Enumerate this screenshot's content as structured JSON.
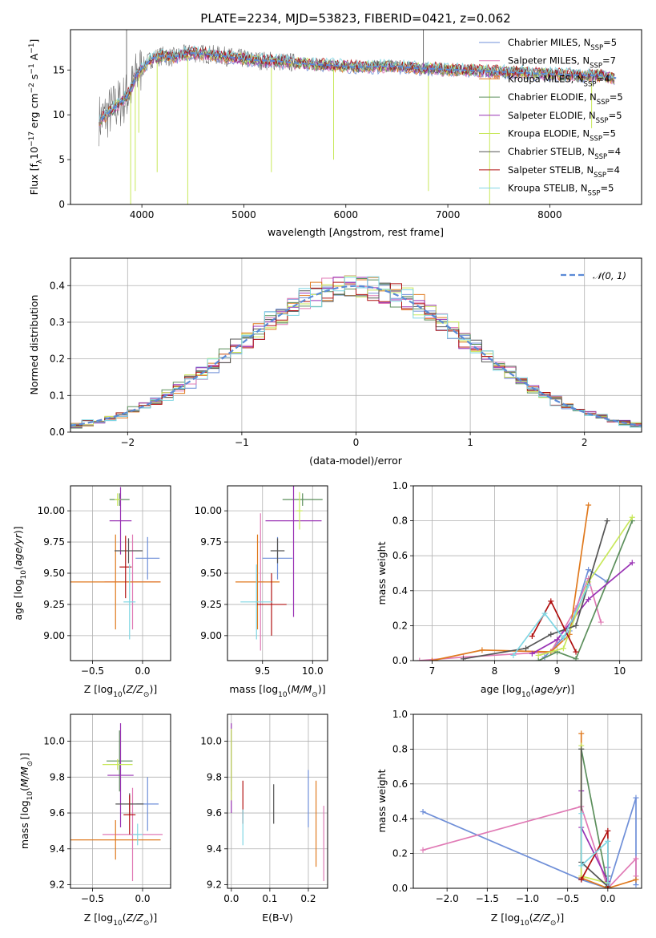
{
  "colors": {
    "Chabrier MILES": "#6f8fd8",
    "Salpeter MILES": "#e07ab5",
    "Kroupa MILES": "#e07a1f",
    "Chabrier ELODIE": "#5c8f5c",
    "Salpeter ELODIE": "#9932b4",
    "Kroupa ELODIE": "#c8e85a",
    "Chabrier STELIB": "#555555",
    "Salpeter STELIB": "#b01010",
    "Kroupa STELIB": "#7fd6e3",
    "data": "#6e6e6e",
    "normal": "#5b8ad6"
  },
  "chart_data": [
    {
      "id": "spectrum",
      "type": "line",
      "title": "PLATE=2234, MJD=53823, FIBERID=0421, z=0.062",
      "xlabel": "wavelength [Angstrom, rest frame]",
      "ylabel": "Flux [f_λ10^-17 erg cm^-2 s^-1 A^-1]",
      "xlim": [
        3300,
        8900
      ],
      "ylim": [
        0,
        19.5
      ],
      "xticks": [
        "4000",
        "5000",
        "6000",
        "7000",
        "8000"
      ],
      "yticks": [
        "0",
        "5",
        "10",
        "15"
      ],
      "grid": false,
      "legend_position": "top-right",
      "legend": [
        {
          "text": "Chabrier MILES, N",
          "sub": "SSP",
          "tail": "=5"
        },
        {
          "text": "Salpeter MILES, N",
          "sub": "SSP",
          "tail": "=7"
        },
        {
          "text": "Kroupa MILES, N",
          "sub": "SSP",
          "tail": "=4"
        },
        {
          "text": "Chabrier ELODIE, N",
          "sub": "SSP",
          "tail": "=5"
        },
        {
          "text": "Salpeter ELODIE, N",
          "sub": "SSP",
          "tail": "=5"
        },
        {
          "text": "Kroupa ELODIE, N",
          "sub": "SSP",
          "tail": "=5"
        },
        {
          "text": "Chabrier STELIB, N",
          "sub": "SSP",
          "tail": "=4"
        },
        {
          "text": "Salpeter STELIB, N",
          "sub": "SSP",
          "tail": "=4"
        },
        {
          "text": "Kroupa STELIB, N",
          "sub": "SSP",
          "tail": "=5"
        }
      ],
      "model_curve": {
        "x": [
          3600,
          3700,
          3800,
          3850,
          3900,
          3950,
          4000,
          4100,
          4200,
          4300,
          4400,
          4500,
          4700,
          4900,
          5100,
          5300,
          5500,
          5700,
          5900,
          6100,
          6300,
          6500,
          6700,
          6900,
          7100,
          7300,
          7500,
          7700,
          7900,
          8100,
          8300,
          8500,
          8650
        ],
        "y": [
          9.5,
          10.5,
          11.5,
          12,
          13,
          14.5,
          15.2,
          16.3,
          16.6,
          16.4,
          16.7,
          16.9,
          16.7,
          16.4,
          16.1,
          16.0,
          15.8,
          15.6,
          15.5,
          15.3,
          15.4,
          15.4,
          15.2,
          15.1,
          15.0,
          14.9,
          14.8,
          14.7,
          14.6,
          14.5,
          14.4,
          14.4,
          14.1
        ]
      },
      "data_spikes": [
        {
          "x": 3890,
          "y": 0
        },
        {
          "x": 3935,
          "y": 1.5
        },
        {
          "x": 3970,
          "y": 8
        },
        {
          "x": 4150,
          "y": 3.6
        },
        {
          "x": 4450,
          "y": 0
        },
        {
          "x": 5270,
          "y": 3.6
        },
        {
          "x": 5880,
          "y": 5
        },
        {
          "x": 6810,
          "y": 1.5
        },
        {
          "x": 7410,
          "y": 0
        },
        {
          "x": 8410,
          "y": 8.5
        },
        {
          "x": 3850,
          "y": 19.5
        },
        {
          "x": 6760,
          "y": 19.5
        }
      ]
    },
    {
      "id": "residual-histogram",
      "type": "line",
      "xlabel": "(data-model)/error",
      "ylabel": "Normed distribution",
      "xlim": [
        -2.5,
        2.5
      ],
      "ylim": [
        0,
        0.475
      ],
      "xticks": [
        "−2",
        "−1",
        "0",
        "1",
        "2"
      ],
      "yticks": [
        "0.0",
        "0.1",
        "0.2",
        "0.3",
        "0.4"
      ],
      "grid": true,
      "legend_position": "top-right",
      "legend": "𝒩(0, 1)"
    },
    {
      "id": "age-vs-Z",
      "type": "scatter",
      "xlabel": "Z [log10(Z/Z⊙)]",
      "ylabel": "age  [log10(age/yr)]",
      "xlim": [
        -0.72,
        0.28
      ],
      "ylim": [
        8.8,
        10.2
      ],
      "xticks": [
        "−0.5",
        "0.0"
      ],
      "yticks": [
        "9.00",
        "9.25",
        "9.50",
        "9.75",
        "10.00"
      ],
      "grid": true,
      "points": [
        {
          "series": "Chabrier MILES",
          "x": 0.05,
          "xerr": 0.12,
          "y": 9.62,
          "yerr": 0.17
        },
        {
          "series": "Salpeter MILES",
          "x": -0.1,
          "xerr": 0.28,
          "y": 9.43,
          "yerr": 0.38
        },
        {
          "series": "Kroupa MILES",
          "x": -0.27,
          "xerr": 0.45,
          "y": 9.43,
          "yerr": 0.38
        },
        {
          "series": "Chabrier ELODIE",
          "x": -0.23,
          "xerr": 0.1,
          "y": 10.09,
          "yerr": 0.05
        },
        {
          "series": "Salpeter ELODIE",
          "x": -0.22,
          "xerr": 0.11,
          "y": 9.92,
          "yerr": 0.27
        },
        {
          "series": "Kroupa ELODIE",
          "x": -0.25,
          "xerr": 0.03,
          "y": 10.09,
          "yerr": 0.05
        },
        {
          "series": "Chabrier STELIB",
          "x": -0.14,
          "xerr": 0.14,
          "y": 9.68,
          "yerr": 0.1
        },
        {
          "series": "Salpeter STELIB",
          "x": -0.17,
          "xerr": 0.06,
          "y": 9.55,
          "yerr": 0.25
        },
        {
          "series": "Kroupa STELIB",
          "x": -0.13,
          "xerr": 0.06,
          "y": 9.27,
          "yerr": 0.3
        }
      ]
    },
    {
      "id": "age-vs-mass",
      "type": "scatter",
      "xlabel": "mass [log10(M/M⊙)]",
      "ylabel": "",
      "xlim": [
        9.15,
        10.15
      ],
      "ylim": [
        8.8,
        10.2
      ],
      "xticks": [
        "9.5",
        "10.0"
      ],
      "yticks": [
        "9.00",
        "9.25",
        "9.50",
        "9.75",
        "10.00"
      ],
      "grid": true,
      "points": [
        {
          "series": "Chabrier MILES",
          "x": 9.65,
          "xerr": 0.15,
          "y": 9.62,
          "yerr": 0.17
        },
        {
          "series": "Salpeter MILES",
          "x": 9.48,
          "xerr": 0.04,
          "y": 9.43,
          "yerr": 0.55
        },
        {
          "series": "Kroupa MILES",
          "x": 9.45,
          "xerr": 0.22,
          "y": 9.43,
          "yerr": 0.38
        },
        {
          "series": "Chabrier ELODIE",
          "x": 9.9,
          "xerr": 0.2,
          "y": 10.09,
          "yerr": 0.05
        },
        {
          "series": "Salpeter ELODIE",
          "x": 9.81,
          "xerr": 0.28,
          "y": 9.92,
          "yerr": 0.77
        },
        {
          "series": "Kroupa ELODIE",
          "x": 9.87,
          "xerr": 0.03,
          "y": 10.0,
          "yerr": 0.15
        },
        {
          "series": "Chabrier STELIB",
          "x": 9.65,
          "xerr": 0.07,
          "y": 9.68,
          "yerr": 0.1
        },
        {
          "series": "Salpeter STELIB",
          "x": 9.59,
          "xerr": 0.15,
          "y": 9.25,
          "yerr": 0.25
        },
        {
          "series": "Kroupa STELIB",
          "x": 9.44,
          "xerr": 0.16,
          "y": 9.27,
          "yerr": 0.3
        }
      ]
    },
    {
      "id": "mass-weight-vs-age",
      "type": "line",
      "xlabel": "age  [log10(age/yr)]",
      "ylabel": "mass weight",
      "xlim": [
        6.7,
        10.35
      ],
      "ylim": [
        0,
        1.0
      ],
      "xticks": [
        "7",
        "8",
        "9",
        "10"
      ],
      "yticks": [
        "0.0",
        "0.2",
        "0.4",
        "0.6",
        "0.8",
        "1.0"
      ],
      "grid": true,
      "series": [
        {
          "name": "Chabrier MILES",
          "x": [
            8.8,
            9.2,
            9.5,
            9.8
          ],
          "y": [
            0.02,
            0.17,
            0.52,
            0.45
          ]
        },
        {
          "name": "Salpeter MILES",
          "x": [
            6.8,
            7.5,
            8.9,
            9.3,
            9.5,
            9.7
          ],
          "y": [
            0.0,
            0.02,
            0.05,
            0.3,
            0.47,
            0.22
          ]
        },
        {
          "name": "Kroupa MILES",
          "x": [
            7.0,
            7.8,
            8.9,
            9.2,
            9.5
          ],
          "y": [
            0.0,
            0.06,
            0.05,
            0.15,
            0.89
          ]
        },
        {
          "name": "Chabrier ELODIE",
          "x": [
            8.7,
            9.0,
            9.3,
            10.2
          ],
          "y": [
            0.0,
            0.05,
            0.01,
            0.8
          ]
        },
        {
          "name": "Salpeter ELODIE",
          "x": [
            8.6,
            9.0,
            9.5,
            10.2
          ],
          "y": [
            0.04,
            0.12,
            0.35,
            0.56
          ]
        },
        {
          "name": "Kroupa ELODIE",
          "x": [
            8.7,
            9.1,
            9.5,
            10.2
          ],
          "y": [
            0.03,
            0.07,
            0.45,
            0.82
          ]
        },
        {
          "name": "Chabrier STELIB",
          "x": [
            7.5,
            8.5,
            8.9,
            9.3,
            9.8
          ],
          "y": [
            0.01,
            0.07,
            0.15,
            0.2,
            0.8
          ]
        },
        {
          "name": "Salpeter STELIB",
          "x": [
            8.6,
            8.9,
            9.3
          ],
          "y": [
            0.14,
            0.34,
            0.05
          ]
        },
        {
          "name": "Kroupa STELIB",
          "x": [
            8.3,
            8.8,
            9.1,
            9.5
          ],
          "y": [
            0.03,
            0.27,
            0.13,
            0.43
          ]
        }
      ]
    },
    {
      "id": "mass-vs-Z",
      "type": "scatter",
      "xlabel": "Z [log10(Z/Z⊙)]",
      "ylabel": "mass [log10(M/M⊙)]",
      "xlim": [
        -0.72,
        0.28
      ],
      "ylim": [
        9.18,
        10.15
      ],
      "xticks": [
        "−0.5",
        "0.0"
      ],
      "yticks": [
        "9.2",
        "9.4",
        "9.6",
        "9.8",
        "10.0"
      ],
      "grid": true,
      "points": [
        {
          "series": "Chabrier MILES",
          "x": 0.05,
          "xerr": 0.11,
          "y": 9.65,
          "yerr": 0.15
        },
        {
          "series": "Salpeter MILES",
          "x": -0.1,
          "xerr": 0.3,
          "y": 9.48,
          "yerr": 0.26
        },
        {
          "series": "Kroupa MILES",
          "x": -0.27,
          "xerr": 0.45,
          "y": 9.45,
          "yerr": 0.11
        },
        {
          "series": "Chabrier ELODIE",
          "x": -0.23,
          "xerr": 0.13,
          "y": 9.89,
          "yerr": 0.17
        },
        {
          "series": "Salpeter ELODIE",
          "x": -0.22,
          "xerr": 0.13,
          "y": 9.81,
          "yerr": 0.29
        },
        {
          "series": "Kroupa ELODIE",
          "x": -0.25,
          "xerr": 0.15,
          "y": 9.87,
          "yerr": 0.03
        },
        {
          "series": "Chabrier STELIB",
          "x": -0.13,
          "xerr": 0.14,
          "y": 9.65,
          "yerr": 0.06
        },
        {
          "series": "Salpeter STELIB",
          "x": -0.13,
          "xerr": 0.06,
          "y": 9.59,
          "yerr": 0.11
        },
        {
          "series": "Kroupa STELIB",
          "x": -0.05,
          "xerr": 0.05,
          "y": 9.48,
          "yerr": 0.06
        }
      ]
    },
    {
      "id": "mass-vs-EBV",
      "type": "scatter",
      "xlabel": "E(B-V)",
      "ylabel": "",
      "xlim": [
        -0.01,
        0.25
      ],
      "ylim": [
        9.18,
        10.15
      ],
      "xticks": [
        "0.0",
        "0.1",
        "0.2"
      ],
      "yticks": [
        "9.2",
        "9.4",
        "9.6",
        "9.8",
        "10.0"
      ],
      "grid": true,
      "points": [
        {
          "series": "Chabrier MILES",
          "x": 0.2,
          "y": 9.68,
          "yerr": 0.16
        },
        {
          "series": "Salpeter MILES",
          "x": 0.24,
          "y": 9.43,
          "yerr": 0.21
        },
        {
          "series": "Kroupa MILES",
          "x": 0.22,
          "y": 9.54,
          "yerr": 0.24
        },
        {
          "series": "Chabrier ELODIE",
          "x": 0.0,
          "y": 9.89,
          "yerr": 0.17
        },
        {
          "series": "Salpeter ELODIE",
          "x": 0.0,
          "y": 9.85,
          "yerr": 0.25
        },
        {
          "series": "Kroupa ELODIE",
          "x": 0.0,
          "y": 9.87,
          "yerr": 0.2
        },
        {
          "series": "Chabrier STELIB",
          "x": 0.11,
          "y": 9.65,
          "yerr": 0.11
        },
        {
          "series": "Salpeter STELIB",
          "x": 0.03,
          "y": 9.66,
          "yerr": 0.12
        },
        {
          "series": "Kroupa STELIB",
          "x": 0.03,
          "y": 9.52,
          "yerr": 0.1
        }
      ]
    },
    {
      "id": "mass-weight-vs-Z",
      "type": "line",
      "xlabel": "Z [log10(Z/Z⊙)]",
      "ylabel": "mass weight",
      "xlim": [
        -2.42,
        0.42
      ],
      "ylim": [
        0,
        1.0
      ],
      "xticks": [
        "−2.0",
        "−1.5",
        "−1.0",
        "−0.5",
        "0.0"
      ],
      "yticks": [
        "0.0",
        "0.2",
        "0.4",
        "0.6",
        "0.8",
        "1.0"
      ],
      "grid": true,
      "series": [
        {
          "name": "Chabrier MILES",
          "x": [
            -2.3,
            -0.33,
            0.0,
            0.35,
            0.35
          ],
          "y": [
            0.44,
            0.05,
            0.0,
            0.52,
            0.02
          ]
        },
        {
          "name": "Salpeter MILES",
          "x": [
            -2.3,
            -0.33,
            0.0,
            0.35,
            0.35
          ],
          "y": [
            0.22,
            0.47,
            0.0,
            0.17,
            0.07
          ]
        },
        {
          "name": "Kroupa MILES",
          "x": [
            -0.33,
            -0.33,
            0.0,
            0.35
          ],
          "y": [
            0.89,
            0.06,
            0.0,
            0.05
          ]
        },
        {
          "name": "Chabrier ELODIE",
          "x": [
            -0.33,
            0.0
          ],
          "y": [
            0.8,
            0.01
          ]
        },
        {
          "name": "Salpeter ELODIE",
          "x": [
            -0.33,
            -0.33,
            0.0,
            0.0
          ],
          "y": [
            0.56,
            0.35,
            0.04,
            0.12
          ]
        },
        {
          "name": "Kroupa ELODIE",
          "x": [
            -0.33,
            -0.33,
            0.0
          ],
          "y": [
            0.82,
            0.07,
            0.03
          ]
        },
        {
          "name": "Chabrier STELIB",
          "x": [
            -0.33,
            -0.33,
            0.0,
            0.0
          ],
          "y": [
            0.8,
            0.15,
            0.01,
            0.07
          ]
        },
        {
          "name": "Salpeter STELIB",
          "x": [
            -0.33,
            0.0,
            0.0
          ],
          "y": [
            0.05,
            0.33,
            0.0
          ]
        },
        {
          "name": "Kroupa STELIB",
          "x": [
            -0.33,
            -0.33,
            0.0,
            0.0
          ],
          "y": [
            0.43,
            0.13,
            0.27,
            0.03
          ]
        }
      ]
    }
  ]
}
